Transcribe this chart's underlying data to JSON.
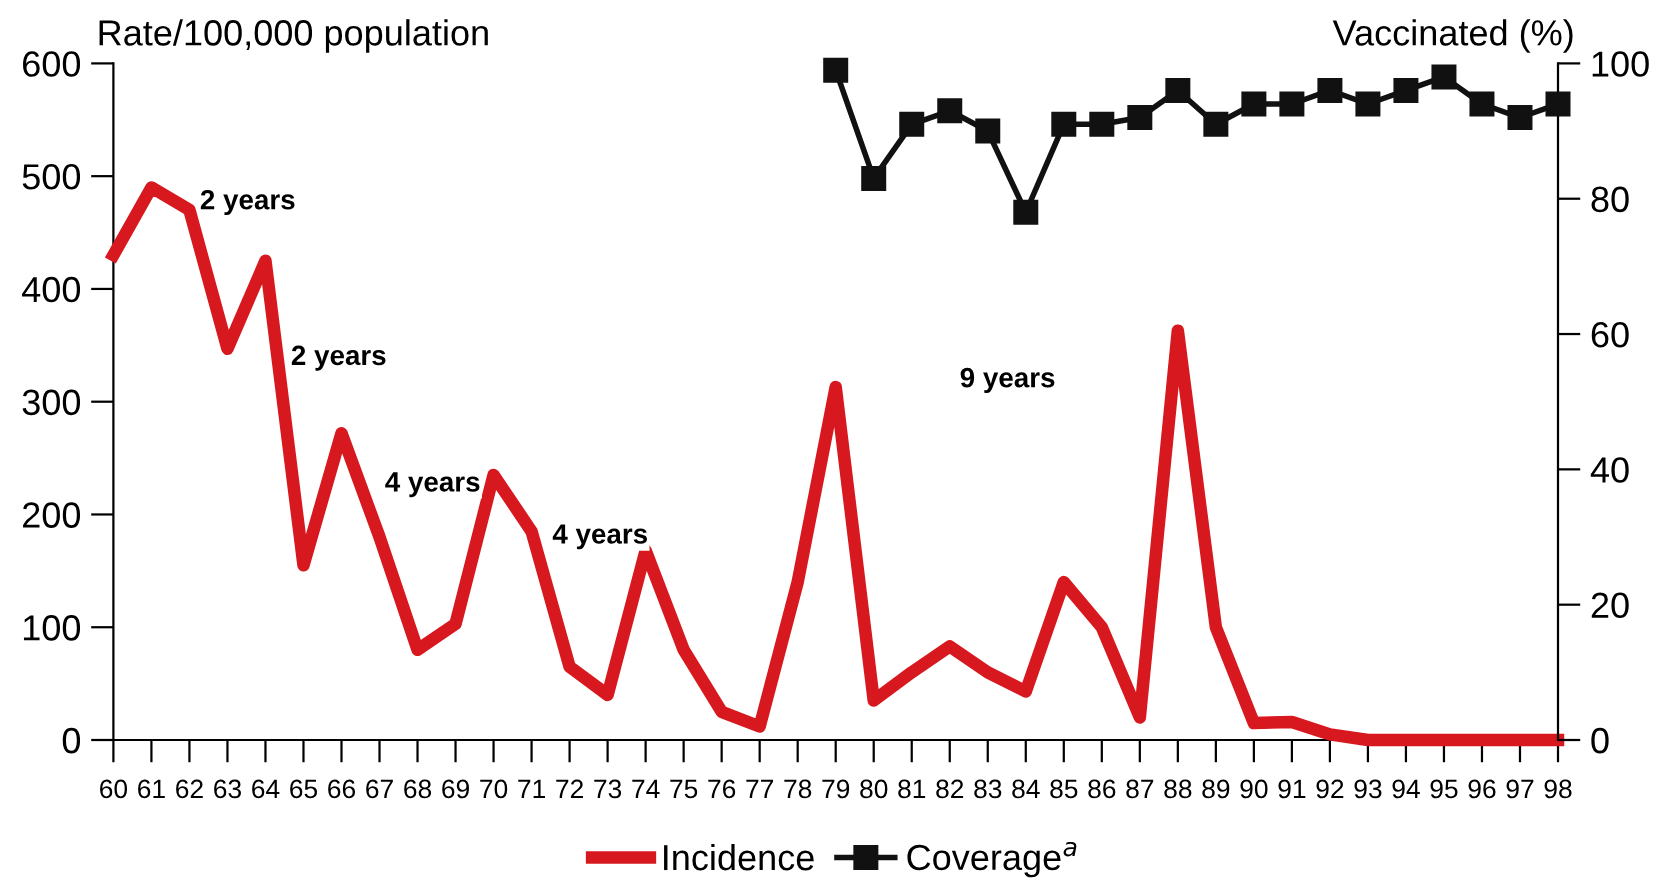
{
  "chart_data": {
    "type": "line",
    "ylabel": "Rate/100,000 population",
    "y2label": "Vaccinated (%)",
    "categories": [
      "60",
      "61",
      "62",
      "63",
      "64",
      "65",
      "66",
      "67",
      "68",
      "69",
      "70",
      "71",
      "72",
      "73",
      "74",
      "75",
      "76",
      "77",
      "78",
      "79",
      "80",
      "81",
      "82",
      "83",
      "84",
      "85",
      "86",
      "87",
      "88",
      "89",
      "90",
      "91",
      "92",
      "93",
      "94",
      "95",
      "96",
      "97",
      "98"
    ],
    "series": [
      {
        "name": "Incidence",
        "color": "#d7191f",
        "marker": "none",
        "values": [
          430,
          490,
          470,
          347,
          425,
          155,
          272,
          180,
          80,
          103,
          235,
          185,
          65,
          40,
          168,
          80,
          25,
          12,
          140,
          313,
          35,
          60,
          83,
          60,
          43,
          140,
          100,
          20,
          363,
          100,
          15,
          16,
          5,
          0,
          0,
          0,
          0,
          0,
          0
        ]
      },
      {
        "name": "Coverage$^{a}$",
        "color": "#111111",
        "axis": "y2",
        "marker": "square",
        "values": [
          null,
          null,
          null,
          null,
          null,
          null,
          null,
          null,
          null,
          null,
          null,
          null,
          null,
          null,
          null,
          null,
          null,
          null,
          null,
          99,
          83,
          91,
          93,
          90,
          78,
          91,
          91,
          92,
          96,
          91,
          94,
          94,
          96,
          94,
          96,
          98,
          94,
          92,
          94
        ]
      }
    ],
    "ylim": [
      0,
      600
    ],
    "yticks": [
      0,
      100,
      200,
      300,
      400,
      500,
      600
    ],
    "y2lim": [
      0,
      100
    ],
    "y2ticks": [
      0,
      20,
      40,
      60,
      80,
      100
    ],
    "annotations": [
      "2 years",
      "2 years",
      "4 years",
      "4 years",
      "9 years"
    ],
    "legend": "bottom",
    "grid": false,
    "line_style": "solid"
  }
}
